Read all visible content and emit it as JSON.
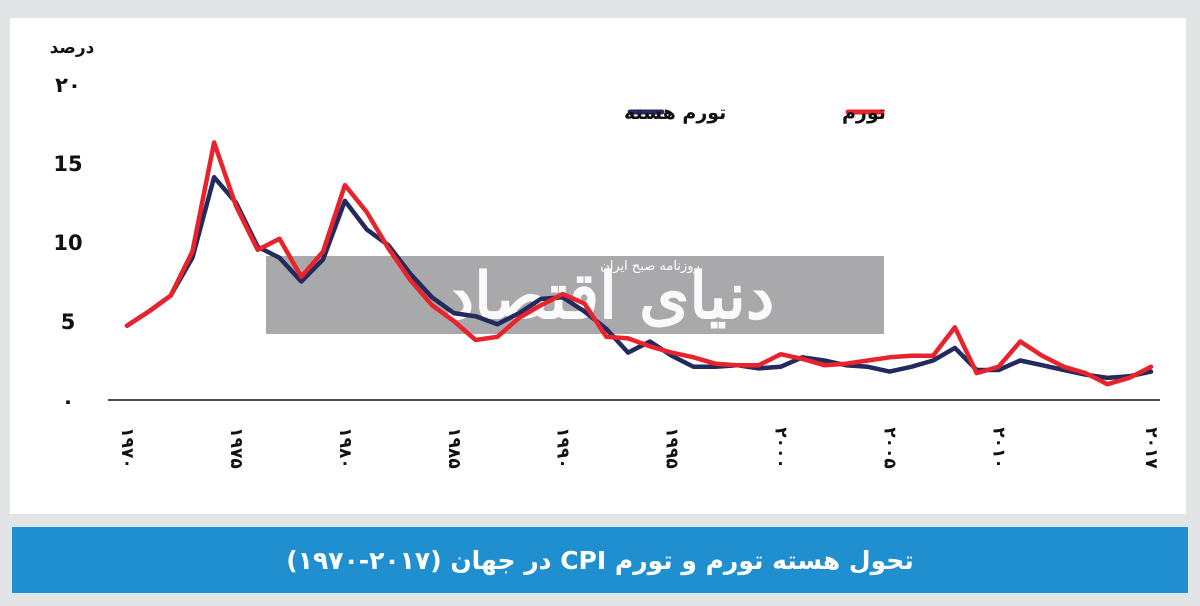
{
  "chart_data": {
    "type": "line",
    "title": "",
    "ylabel": "درصد",
    "xlabel": "",
    "ylim": [
      0,
      20
    ],
    "xlim": [
      1970,
      2017
    ],
    "y_ticks": [
      "۰",
      "5",
      "10",
      "15",
      "۲۰"
    ],
    "y_tick_values": [
      0,
      5,
      10,
      15,
      20
    ],
    "x_ticks": [
      "۱۹۷۰",
      "۱۹۷۵",
      "۱۹۸۰",
      "۱۹۸۵",
      "۱۹۹۰",
      "۱۹۹۵",
      "۲۰۰۰",
      "۲۰۰۵",
      "۲۰۱۰",
      "۲۰۱۷"
    ],
    "x_tick_values": [
      1970,
      1975,
      1980,
      1985,
      1990,
      1995,
      2000,
      2005,
      2010,
      2017
    ],
    "grid": false,
    "legend_position": "top",
    "series": [
      {
        "name": "تورم",
        "color": "#e8232c",
        "x": [
          1970,
          1971,
          1972,
          1973,
          1974,
          1975,
          1976,
          1977,
          1978,
          1979,
          1980,
          1981,
          1982,
          1983,
          1984,
          1985,
          1986,
          1987,
          1988,
          1989,
          1990,
          1991,
          1992,
          1993,
          1994,
          1995,
          1996,
          1997,
          1998,
          1999,
          2000,
          2001,
          2002,
          2003,
          2004,
          2005,
          2006,
          2007,
          2008,
          2009,
          2010,
          2011,
          2012,
          2013,
          2014,
          2015,
          2016,
          2017
        ],
        "values": [
          4.7,
          5.6,
          6.6,
          9.4,
          16.3,
          12.3,
          9.5,
          10.2,
          7.8,
          9.4,
          13.6,
          11.9,
          9.6,
          7.6,
          6.0,
          5.0,
          3.8,
          4.0,
          5.2,
          6.0,
          6.7,
          6.1,
          4.0,
          3.9,
          3.4,
          3.0,
          2.7,
          2.3,
          2.2,
          2.2,
          2.9,
          2.6,
          2.2,
          2.3,
          2.5,
          2.7,
          2.8,
          2.8,
          4.6,
          1.7,
          2.1,
          3.7,
          2.8,
          2.1,
          1.7,
          1.0,
          1.4,
          2.1
        ]
      },
      {
        "name": "تورم هسته",
        "color": "#222a5e",
        "x": [
          1970,
          1971,
          1972,
          1973,
          1974,
          1975,
          1976,
          1977,
          1978,
          1979,
          1980,
          1981,
          1982,
          1983,
          1984,
          1985,
          1986,
          1987,
          1988,
          1989,
          1990,
          1991,
          1992,
          1993,
          1994,
          1995,
          1996,
          1997,
          1998,
          1999,
          2000,
          2001,
          2002,
          2003,
          2004,
          2005,
          2006,
          2007,
          2008,
          2009,
          2010,
          2011,
          2012,
          2013,
          2014,
          2015,
          2016,
          2017
        ],
        "values": [
          4.7,
          5.6,
          6.6,
          9.0,
          14.1,
          12.5,
          9.7,
          9.0,
          7.5,
          8.9,
          12.6,
          10.8,
          9.8,
          8.0,
          6.5,
          5.5,
          5.3,
          4.8,
          5.5,
          6.4,
          6.5,
          5.6,
          4.5,
          3.0,
          3.7,
          2.8,
          2.1,
          2.1,
          2.2,
          2.0,
          2.1,
          2.7,
          2.5,
          2.2,
          2.1,
          1.8,
          2.1,
          2.5,
          3.3,
          1.9,
          1.9,
          2.5,
          2.2,
          1.9,
          1.6,
          1.4,
          1.5,
          1.8
        ]
      }
    ]
  },
  "colors": {
    "background": "#e3e4e6",
    "card": "#ffffff",
    "footer": "#1f8fcf",
    "watermark_band": "#a9a9ab"
  },
  "watermark": {
    "brand": "دنیای اقتصاد",
    "tagline": "روزنامه صبح ایران"
  },
  "footer": {
    "title": "تحول هسته تورم و تورم CPI در جهان (۲۰۱۷-۱۹۷۰)"
  }
}
